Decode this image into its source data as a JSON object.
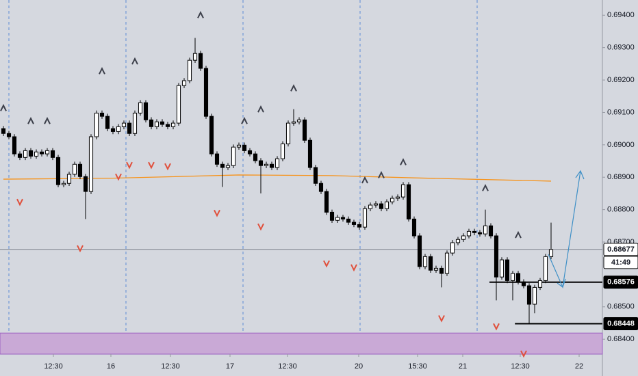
{
  "chart_data": {
    "type": "candlestick",
    "up_color": "#ffffff",
    "down_color": "#000000",
    "xlim": [
      -0.625,
      109.375
    ],
    "xticks": [
      {
        "value": 9.125,
        "label": "12:30"
      },
      {
        "value": 19.625,
        "label": "16"
      },
      {
        "value": 30.5,
        "label": "12:30"
      },
      {
        "value": 41.375,
        "label": "17"
      },
      {
        "value": 51.875,
        "label": "12:30"
      },
      {
        "value": 64.875,
        "label": "20"
      },
      {
        "value": 75.625,
        "label": "15:30"
      },
      {
        "value": 83.875,
        "label": "21"
      },
      {
        "value": 94.375,
        "label": "12:30"
      },
      {
        "value": 105.125,
        "label": "22"
      }
    ],
    "ylim": [
      0.68354,
      0.69447
    ],
    "yticks": [
      {
        "value": 0.694,
        "label": "0.69400"
      },
      {
        "value": 0.693,
        "label": "0.69300"
      },
      {
        "value": 0.692,
        "label": "0.69200"
      },
      {
        "value": 0.691,
        "label": "0.69100"
      },
      {
        "value": 0.69,
        "label": "0.69000"
      },
      {
        "value": 0.689,
        "label": "0.68900"
      },
      {
        "value": 0.688,
        "label": "0.68800"
      },
      {
        "value": 0.687,
        "label": "0.68700"
      },
      {
        "value": 0.685,
        "label": "0.68500"
      },
      {
        "value": 0.684,
        "label": "0.68400"
      }
    ],
    "open": [
      0.6905,
      0.69035,
      0.69025,
      0.68972,
      0.68961,
      0.68982,
      0.68965,
      0.68978,
      0.68972,
      0.68982,
      0.68961,
      0.68877,
      0.68881,
      0.68909,
      0.6894,
      0.68902,
      0.68856,
      0.69025,
      0.69098,
      0.69088,
      0.6905,
      0.69041,
      0.69056,
      0.69067,
      0.69035,
      0.69098,
      0.6913,
      0.69077,
      0.69056,
      0.69071,
      0.69063,
      0.69056,
      0.69067,
      0.69183,
      0.69198,
      0.69261,
      0.69282,
      0.69236,
      0.69088,
      0.68972,
      0.6894,
      0.6893,
      0.68936,
      0.68993,
      0.68999,
      0.68982,
      0.68972,
      0.68951,
      0.68936,
      0.6894,
      0.6893,
      0.68957,
      0.69003,
      0.69067,
      0.69071,
      0.69077,
      0.69014,
      0.6893,
      0.68881,
      0.68856,
      0.68792,
      0.68767,
      0.68776,
      0.68771,
      0.68761,
      0.68754,
      0.68746,
      0.68803,
      0.68814,
      0.68818,
      0.68803,
      0.68824,
      0.68835,
      0.68839,
      0.68877,
      0.68771,
      0.68719,
      0.68624,
      0.68655,
      0.68613,
      0.68619,
      0.68603,
      0.68666,
      0.68698,
      0.68708,
      0.68719,
      0.68733,
      0.68729,
      0.68725,
      0.6875,
      0.68719,
      0.68592,
      0.68645,
      0.68581,
      0.68603,
      0.68577,
      0.68565,
      0.68508,
      0.6856,
      0.68581,
      0.68655
    ],
    "high": [
      0.69058,
      0.69043,
      0.69033,
      0.6898,
      0.6899,
      0.6899,
      0.68986,
      0.68986,
      0.6899,
      0.6899,
      0.68969,
      0.68889,
      0.68917,
      0.68948,
      0.68948,
      0.6891,
      0.69033,
      0.69106,
      0.69106,
      0.69096,
      0.69058,
      0.69064,
      0.69075,
      0.69075,
      0.69106,
      0.69138,
      0.69138,
      0.69085,
      0.69079,
      0.69079,
      0.69071,
      0.69075,
      0.69191,
      0.69206,
      0.69269,
      0.6933,
      0.6929,
      0.69244,
      0.69096,
      0.6898,
      0.68948,
      0.68944,
      0.69001,
      0.69007,
      0.69007,
      0.6899,
      0.6898,
      0.68959,
      0.68948,
      0.68948,
      0.68965,
      0.69011,
      0.69075,
      0.6911,
      0.69085,
      0.69085,
      0.69022,
      0.68938,
      0.68889,
      0.68864,
      0.688,
      0.68784,
      0.68784,
      0.68779,
      0.68769,
      0.68762,
      0.68811,
      0.68822,
      0.68826,
      0.68826,
      0.68832,
      0.68843,
      0.68847,
      0.68885,
      0.68885,
      0.68779,
      0.68727,
      0.68663,
      0.68663,
      0.68627,
      0.68627,
      0.68674,
      0.68706,
      0.68716,
      0.68727,
      0.68741,
      0.68741,
      0.68737,
      0.688,
      0.68758,
      0.68727,
      0.68653,
      0.68653,
      0.68611,
      0.68611,
      0.68585,
      0.68573,
      0.68568,
      0.68589,
      0.68663,
      0.6876
    ],
    "low": [
      0.69027,
      0.69017,
      0.68964,
      0.68953,
      0.68953,
      0.68957,
      0.68957,
      0.68964,
      0.68964,
      0.68953,
      0.68869,
      0.68869,
      0.68873,
      0.68901,
      0.68894,
      0.68771,
      0.68848,
      0.69017,
      0.6908,
      0.69042,
      0.69033,
      0.69033,
      0.69048,
      0.69027,
      0.69027,
      0.6909,
      0.69069,
      0.69048,
      0.69048,
      0.69055,
      0.69048,
      0.69048,
      0.69059,
      0.69175,
      0.6919,
      0.69253,
      0.69228,
      0.6908,
      0.68964,
      0.68932,
      0.6887,
      0.68922,
      0.68928,
      0.68985,
      0.68974,
      0.68964,
      0.68943,
      0.6885,
      0.68928,
      0.68922,
      0.68922,
      0.68949,
      0.68995,
      0.69059,
      0.69063,
      0.69006,
      0.68922,
      0.68873,
      0.68848,
      0.68784,
      0.68759,
      0.68759,
      0.68763,
      0.68753,
      0.68746,
      0.68738,
      0.68738,
      0.68795,
      0.68806,
      0.68795,
      0.68795,
      0.68816,
      0.68827,
      0.68831,
      0.68763,
      0.68711,
      0.68616,
      0.68616,
      0.68605,
      0.68605,
      0.6856,
      0.68595,
      0.68658,
      0.6869,
      0.687,
      0.68711,
      0.68721,
      0.68717,
      0.68717,
      0.68711,
      0.6852,
      0.68584,
      0.68573,
      0.6852,
      0.68569,
      0.68557,
      0.68448,
      0.6848,
      0.68552,
      0.68573,
      0.68647
    ],
    "close": [
      0.69035,
      0.69025,
      0.68972,
      0.68961,
      0.68982,
      0.68965,
      0.68978,
      0.68972,
      0.68982,
      0.68961,
      0.68877,
      0.68881,
      0.68909,
      0.6894,
      0.68902,
      0.68856,
      0.69025,
      0.69098,
      0.69088,
      0.6905,
      0.69041,
      0.69056,
      0.69067,
      0.69035,
      0.69098,
      0.6913,
      0.69077,
      0.69056,
      0.69071,
      0.69063,
      0.69056,
      0.69067,
      0.69183,
      0.69198,
      0.69261,
      0.69282,
      0.69236,
      0.69088,
      0.68972,
      0.6894,
      0.6893,
      0.68936,
      0.68993,
      0.68999,
      0.68982,
      0.68972,
      0.68951,
      0.68936,
      0.6894,
      0.6893,
      0.68957,
      0.69003,
      0.69067,
      0.69071,
      0.69077,
      0.69014,
      0.6893,
      0.68881,
      0.68856,
      0.68792,
      0.68767,
      0.68776,
      0.68771,
      0.68761,
      0.68754,
      0.68746,
      0.68803,
      0.68814,
      0.68818,
      0.68803,
      0.68824,
      0.68835,
      0.68839,
      0.68877,
      0.68771,
      0.68719,
      0.68624,
      0.68655,
      0.68613,
      0.68619,
      0.68603,
      0.68666,
      0.68698,
      0.68708,
      0.68719,
      0.68733,
      0.68729,
      0.68725,
      0.6875,
      0.68719,
      0.68592,
      0.68645,
      0.68581,
      0.68603,
      0.68577,
      0.68565,
      0.68508,
      0.6856,
      0.68581,
      0.68655,
      0.68677
    ],
    "moving_average": {
      "color": "#f7931a",
      "x": [
        0,
        20,
        43,
        60,
        75,
        100
      ],
      "values": [
        0.68894,
        0.68897,
        0.68907,
        0.68905,
        0.68898,
        0.68888
      ]
    },
    "fractal_up": {
      "color": "#3c3f4a",
      "x": [
        0,
        5,
        8,
        18,
        24,
        36,
        44,
        47,
        53,
        66,
        69,
        73,
        88,
        94
      ],
      "values": [
        0.69113,
        0.69073,
        0.69073,
        0.69227,
        0.69257,
        0.694,
        0.69073,
        0.69109,
        0.69174,
        0.6889,
        0.68906,
        0.68946,
        0.68866,
        0.68721
      ]
    },
    "fractal_down": {
      "color": "#e0503c",
      "x": [
        3,
        14,
        21,
        23,
        27,
        30,
        39,
        47,
        59,
        64,
        80,
        90,
        95
      ],
      "values": [
        0.68824,
        0.68681,
        0.68902,
        0.68938,
        0.68938,
        0.68934,
        0.6879,
        0.68748,
        0.68634,
        0.68622,
        0.68465,
        0.6844,
        0.68356
      ]
    },
    "zone": {
      "color": "#c9a9d6",
      "top": 0.68419
    },
    "price_line": {
      "value": 0.68677,
      "countdown": "41:49"
    },
    "levels": [
      0.68576,
      0.68448
    ]
  }
}
